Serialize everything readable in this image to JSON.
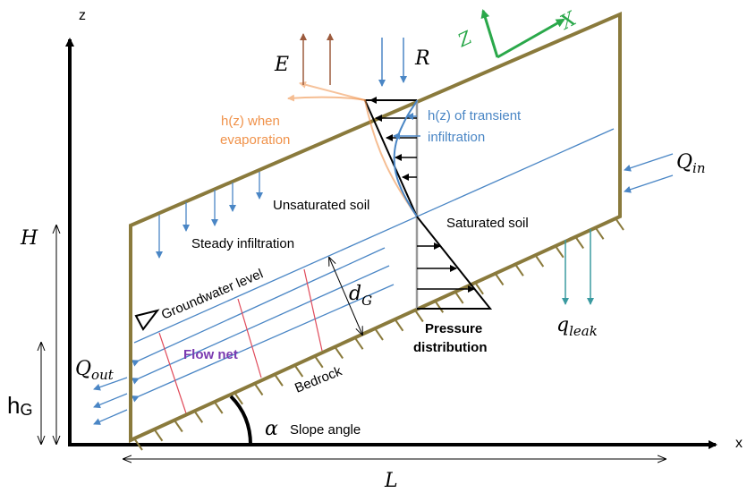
{
  "axes": {
    "x": "x",
    "z": "z",
    "slope_X": "X",
    "slope_Z": "Z"
  },
  "labels": {
    "E": "E",
    "R": "R",
    "h_evap": [
      "h(z) when",
      "evaporation"
    ],
    "h_trans": [
      "h(z) of transient",
      "infiltration"
    ],
    "unsat": "Unsaturated soil",
    "sat": "Saturated soil",
    "steady": "Steady infiltration",
    "gw": "Groundwater level",
    "flownet": "Flow net",
    "pressure": [
      "Pressure",
      "distribution"
    ],
    "bedrock": "Bedrock",
    "slope": "Slope angle",
    "alpha": "α"
  },
  "dims": {
    "H": "H",
    "hG": "h",
    "hG_sub": "G",
    "L": "L",
    "dG": "d",
    "dG_sub": "G"
  },
  "flows": {
    "Qin": "Q",
    "Qin_sub": "in",
    "Qout": "Q",
    "Qout_sub": "out",
    "qleak": "q",
    "qleak_sub": "leak"
  },
  "colors": {
    "soil_outline": "#8a7a3c",
    "blue": "#4a86c5",
    "orange": "#f0924a",
    "brown": "#9c5a3c",
    "green": "#2aa84a",
    "teal": "#3a9aa0",
    "purple": "#7a3ab0",
    "red": "#e04a5a",
    "black": "#000000"
  }
}
